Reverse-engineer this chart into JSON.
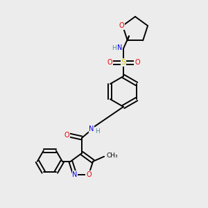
{
  "bg_color": "#ececec",
  "atom_colors": {
    "C": "#000000",
    "N": "#0000ee",
    "O": "#ee0000",
    "S": "#cccc00",
    "H": "#558899"
  },
  "figsize": [
    3.0,
    3.0
  ],
  "dpi": 100,
  "lw": 1.4,
  "fontsize": 7.5
}
